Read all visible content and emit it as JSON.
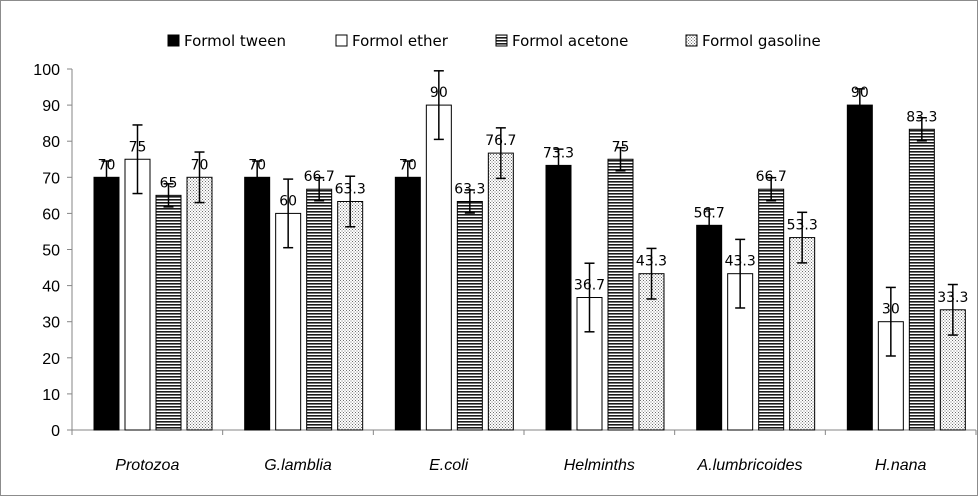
{
  "chart_data": {
    "type": "bar",
    "title": "",
    "xlabel": "",
    "ylabel": "",
    "ylim": [
      0,
      100
    ],
    "yticks": [
      0,
      10,
      20,
      30,
      40,
      50,
      60,
      70,
      80,
      90,
      100
    ],
    "grid": false,
    "legend_position": "top",
    "categories": [
      "Protozoa",
      "G.lamblia",
      "E.coli",
      "Helminths",
      "A.lumbricoides",
      "H.nana"
    ],
    "series": [
      {
        "name": "Formol tween",
        "fill": "solid",
        "color": "#000000",
        "values": [
          70,
          70,
          70,
          73.3,
          56.7,
          90
        ],
        "labels": [
          "70",
          "70",
          "70",
          "73.3",
          "56.7",
          "90"
        ],
        "errors": [
          4.5,
          4.5,
          4.5,
          4.5,
          4.5,
          4.5
        ]
      },
      {
        "name": "Formol ether",
        "fill": "white",
        "color": "#ffffff",
        "values": [
          75,
          60,
          90,
          36.7,
          43.3,
          30
        ],
        "labels": [
          "75",
          "60",
          "90",
          "36.7",
          "43.3",
          "30"
        ],
        "errors": [
          9.5,
          9.5,
          9.5,
          9.5,
          9.5,
          9.5
        ]
      },
      {
        "name": "Formol acetone",
        "fill": "horizontal-stripes",
        "color": "#404040",
        "values": [
          65,
          66.7,
          63.3,
          75,
          66.7,
          83.3
        ],
        "labels": [
          "65",
          "66.7",
          "63.3",
          "75",
          "66.7",
          "83.3"
        ],
        "errors": [
          3.2,
          3.2,
          3.2,
          3.2,
          3.2,
          3.2
        ]
      },
      {
        "name": "Formol gasoline",
        "fill": "dotted",
        "color": "#bfbfbf",
        "values": [
          70,
          63.3,
          76.7,
          43.3,
          53.3,
          33.3
        ],
        "labels": [
          "70",
          "63.3",
          "76.7",
          "43.3",
          "53.3",
          "33.3"
        ],
        "errors": [
          7,
          7,
          7,
          7,
          7,
          7
        ]
      }
    ]
  }
}
